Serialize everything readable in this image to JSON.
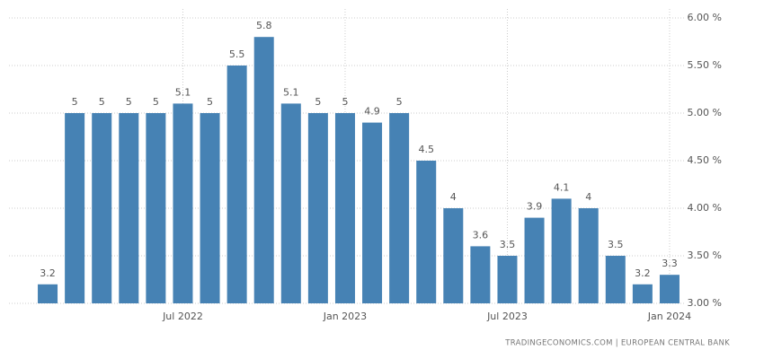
{
  "chart_data": {
    "type": "bar",
    "categories": [
      null,
      null,
      null,
      null,
      null,
      "Jul 2022",
      null,
      null,
      null,
      null,
      null,
      "Jan 2023",
      null,
      null,
      null,
      null,
      null,
      "Jul 2023",
      null,
      null,
      null,
      null,
      null,
      "Jan 2024"
    ],
    "values": [
      3.2,
      5,
      5,
      5,
      5,
      5.1,
      5,
      5.5,
      5.8,
      5.1,
      5,
      5,
      4.9,
      5,
      4.5,
      4,
      3.6,
      3.5,
      3.9,
      4.1,
      4,
      3.5,
      3.2,
      3.3
    ],
    "color": "#4682b4",
    "ylim": [
      3,
      6
    ],
    "yticks": [
      {
        "value": 3,
        "label": "3.00 %"
      },
      {
        "value": 3.5,
        "label": "3.50 %"
      },
      {
        "value": 4,
        "label": "4.00 %"
      },
      {
        "value": 4.5,
        "label": "4.50 %"
      },
      {
        "value": 5,
        "label": "5.00 %"
      },
      {
        "value": 5.5,
        "label": "5.50 %"
      },
      {
        "value": 6,
        "label": "6.00 %"
      }
    ],
    "grid": true,
    "source": "TRADINGECONOMICS.COM | EUROPEAN CENTRAL BANK"
  }
}
